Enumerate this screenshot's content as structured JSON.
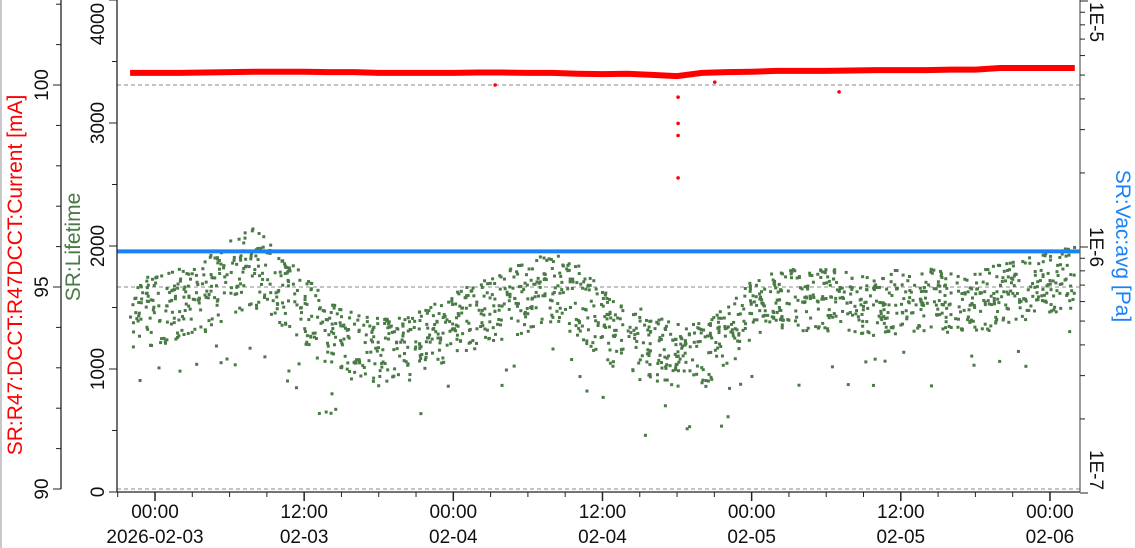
{
  "chart_data": {
    "type": "scatter",
    "title": "",
    "grid": "dashed horizontal lines at current major ticks",
    "x_axis": {
      "range": [
        "2026-02-02T20:53",
        "2026-02-06T02:24"
      ],
      "ticks": [
        {
          "t": "2026-02-03T00:00",
          "line1": "00:00",
          "line2": "2026-02-03"
        },
        {
          "t": "2026-02-03T12:00",
          "line1": "12:00",
          "line2": "02-03"
        },
        {
          "t": "2026-02-04T00:00",
          "line1": "00:00",
          "line2": "02-04"
        },
        {
          "t": "2026-02-04T12:00",
          "line1": "12:00",
          "line2": "02-04"
        },
        {
          "t": "2026-02-05T00:00",
          "line1": "00:00",
          "line2": "02-05"
        },
        {
          "t": "2026-02-05T12:00",
          "line1": "12:00",
          "line2": "02-05"
        },
        {
          "t": "2026-02-06T00:00",
          "line1": "00:00",
          "line2": "02-06"
        }
      ]
    },
    "axes": {
      "current": {
        "label": "SR:R47:DCCT:R47DCCT:Current [mA]",
        "color": "#ff0000",
        "range": [
          90,
          102.1
        ],
        "ticks": [
          "90",
          "95",
          "100"
        ],
        "tick_values": [
          90,
          95,
          100
        ],
        "position": "left-outer"
      },
      "lifetime": {
        "label": "SR:Lifetime",
        "color": "#4a7a46",
        "range": [
          0,
          4000
        ],
        "ticks": [
          "0",
          "1000",
          "2000",
          "3000",
          "4000"
        ],
        "tick_values": [
          0,
          1000,
          2000,
          3000,
          4000
        ],
        "position": "left-inner"
      },
      "vacuum": {
        "label": "SR:Vac:avg [Pa]",
        "color": "#1a82f7",
        "range": [
          1e-07,
          1e-05
        ],
        "scale": "log",
        "ticks": [
          "1E-7",
          "1E-6",
          "1E-5"
        ],
        "tick_values": [
          1e-07,
          1e-06,
          1e-05
        ],
        "position": "right"
      }
    },
    "series": [
      {
        "name": "SR:R47:DCCT:R47DCCT:Current [mA]",
        "axis": "current",
        "color": "#ff0000",
        "x_start": "2026-02-02T22:00",
        "x_step_hours": 2,
        "y": [
          100.3,
          100.3,
          100.3,
          100.31,
          100.32,
          100.33,
          100.33,
          100.33,
          100.32,
          100.32,
          100.3,
          100.3,
          100.3,
          100.3,
          100.31,
          100.31,
          100.3,
          100.3,
          100.28,
          100.27,
          100.28,
          100.25,
          100.22,
          100.3,
          100.32,
          100.33,
          100.35,
          100.35,
          100.35,
          100.36,
          100.37,
          100.37,
          100.37,
          100.38,
          100.38,
          100.42,
          100.42,
          100.42,
          100.42
        ],
        "outliers": [
          {
            "t": "2026-02-04T03:22",
            "y": 100.0
          },
          {
            "t": "2026-02-04T18:05",
            "y": 99.7
          },
          {
            "t": "2026-02-04T18:05",
            "y": 99.05
          },
          {
            "t": "2026-02-04T18:05",
            "y": 98.75
          },
          {
            "t": "2026-02-04T18:05",
            "y": 97.7
          },
          {
            "t": "2026-02-04T21:02",
            "y": 100.07
          },
          {
            "t": "2026-02-05T07:02",
            "y": 99.83
          }
        ]
      },
      {
        "name": "SR:Lifetime",
        "axis": "lifetime",
        "color": "#4a7a46",
        "x_start": "2026-02-02T22:00",
        "x_step_hours": 2,
        "y": [
          1470,
          1530,
          1590,
          1660,
          1800,
          1900,
          1720,
          1540,
          1360,
          1250,
          1200,
          1220,
          1300,
          1400,
          1510,
          1560,
          1650,
          1720,
          1620,
          1430,
          1310,
          1230,
          1190,
          1160,
          1320,
          1520,
          1580,
          1600,
          1600,
          1590,
          1560,
          1590,
          1600,
          1570,
          1570,
          1640,
          1700,
          1740,
          1790
        ],
        "y_min": [
          1100,
          1180,
          1240,
          1300,
          1420,
          1500,
          1340,
          1160,
          1000,
          900,
          860,
          880,
          960,
          1060,
          1180,
          1220,
          1300,
          1360,
          1260,
          1060,
          940,
          880,
          850,
          830,
          1000,
          1220,
          1280,
          1300,
          1300,
          1290,
          1260,
          1290,
          1300,
          1270,
          1270,
          1340,
          1400,
          1450,
          1500
        ],
        "y_max": [
          1700,
          1760,
          1820,
          1900,
          2050,
          2150,
          1960,
          1760,
          1560,
          1450,
          1400,
          1420,
          1500,
          1600,
          1720,
          1780,
          1880,
          1950,
          1840,
          1640,
          1500,
          1430,
          1390,
          1360,
          1500,
          1720,
          1800,
          1820,
          1820,
          1810,
          1780,
          1810,
          1820,
          1790,
          1790,
          1860,
          1920,
          1960,
          2010
        ]
      },
      {
        "name": "SR:Vac:avg [Pa]",
        "axis": "vacuum",
        "color": "#1a82f7",
        "x": [
          "2026-02-02T20:53",
          "2026-02-06T02:24"
        ],
        "y": [
          9.6e-07,
          9.6e-07
        ]
      }
    ]
  }
}
